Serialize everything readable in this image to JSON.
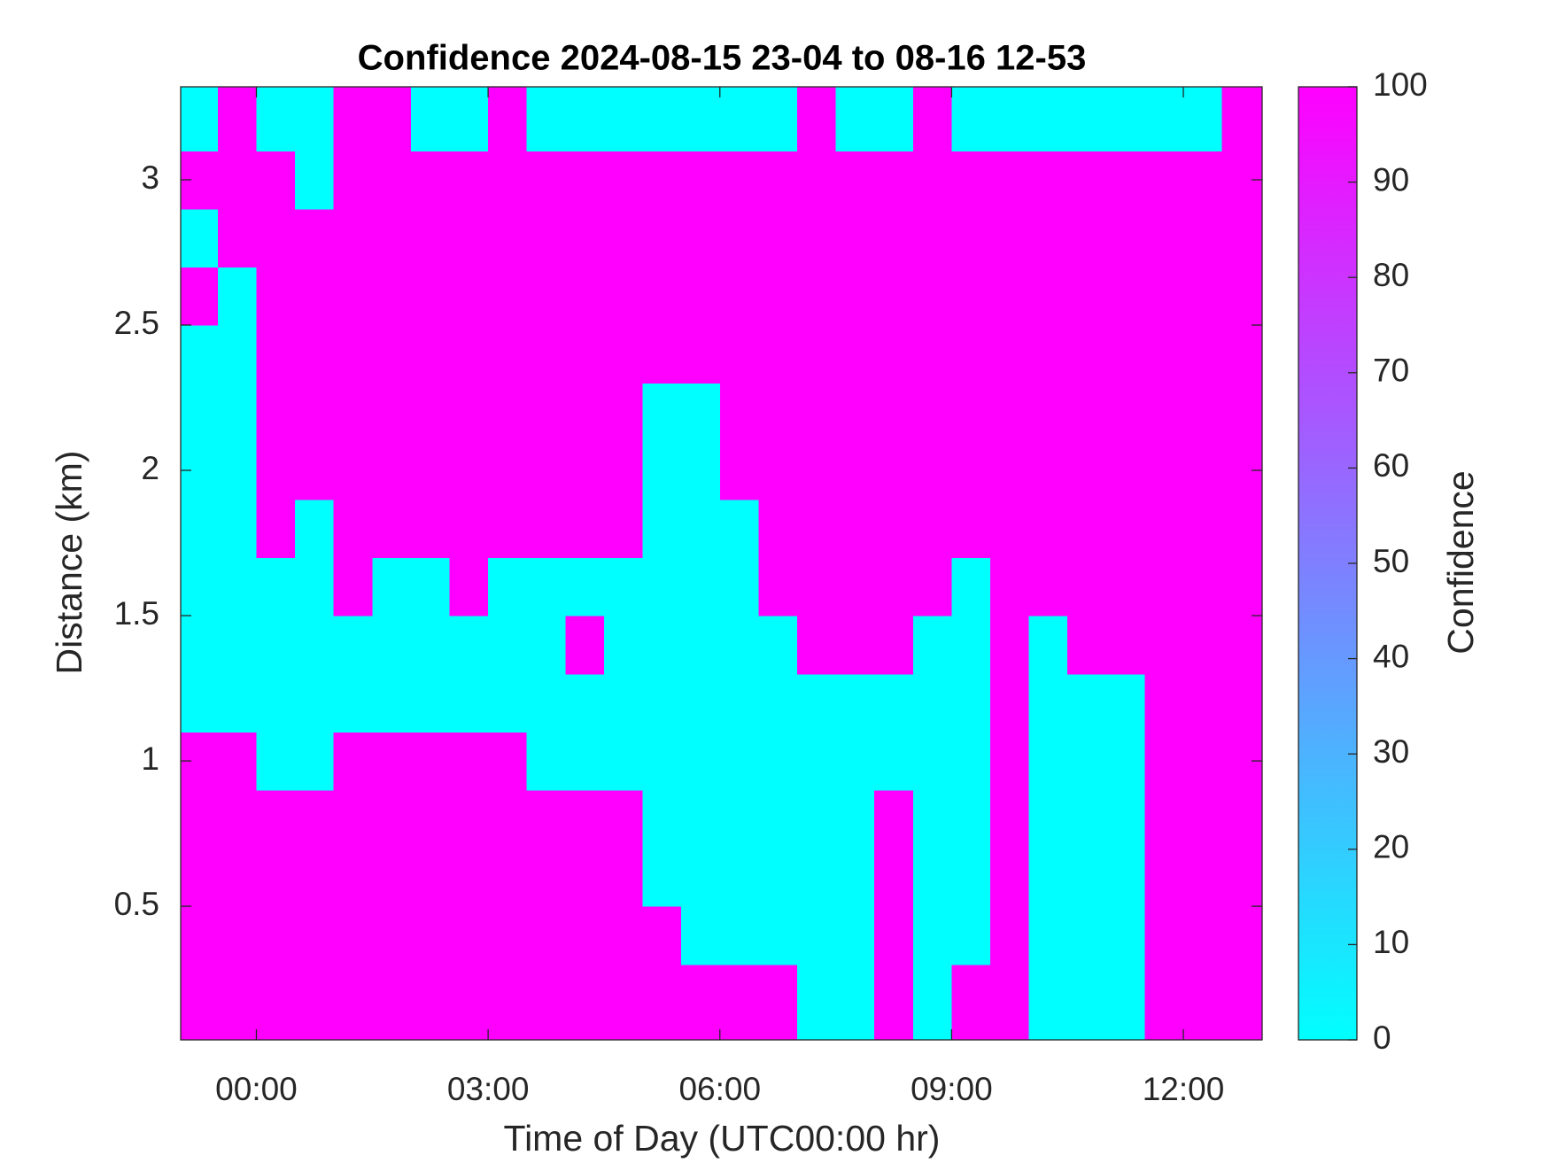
{
  "chart_data": {
    "type": "heatmap",
    "title": "Confidence 2024-08-15 23-04 to 08-16 12-53",
    "x_label": "Time of Day (UTC00:00 hr)",
    "y_label": "Distance (km)",
    "colorbar_label": "Confidence",
    "colormap": [
      "#00ffff",
      "#ff00ff"
    ],
    "clim": [
      0,
      100
    ],
    "cticks": [
      0,
      10,
      20,
      30,
      40,
      50,
      60,
      70,
      80,
      90,
      100
    ],
    "xlim": [
      -0.98,
      13.02
    ],
    "ylim": [
      0.04,
      3.32
    ],
    "xticks": [
      {
        "value": 0,
        "label": "00:00"
      },
      {
        "value": 3,
        "label": "03:00"
      },
      {
        "value": 6,
        "label": "06:00"
      },
      {
        "value": 9,
        "label": "09:00"
      },
      {
        "value": 12,
        "label": "12:00"
      }
    ],
    "yticks": [
      0.5,
      1,
      1.5,
      2,
      2.5,
      3
    ],
    "x": [
      -0.75,
      -0.25,
      0.25,
      0.75,
      1.25,
      1.75,
      2.25,
      2.75,
      3.25,
      3.75,
      4.25,
      4.75,
      5.25,
      5.75,
      6.25,
      6.75,
      7.25,
      7.75,
      8.25,
      8.75,
      9.25,
      9.75,
      10.25,
      10.75,
      11.25,
      11.75,
      12.25,
      12.75
    ],
    "y": [
      0.2,
      0.4,
      0.6,
      0.8,
      1.0,
      1.2,
      1.4,
      1.6,
      1.8,
      2.0,
      2.2,
      2.4,
      2.6,
      2.8,
      3.0,
      3.2
    ],
    "z": [
      [
        100,
        100,
        100,
        100,
        100,
        100,
        100,
        100,
        100,
        100,
        100,
        100,
        100,
        100,
        100,
        100,
        0,
        0,
        100,
        0,
        100,
        100,
        0,
        0,
        0,
        100,
        100,
        100
      ],
      [
        100,
        100,
        100,
        100,
        100,
        100,
        100,
        100,
        100,
        100,
        100,
        100,
        100,
        0,
        0,
        0,
        0,
        0,
        100,
        0,
        0,
        100,
        0,
        0,
        0,
        100,
        100,
        100
      ],
      [
        100,
        100,
        100,
        100,
        100,
        100,
        100,
        100,
        100,
        100,
        100,
        100,
        0,
        0,
        0,
        0,
        0,
        0,
        100,
        0,
        0,
        100,
        0,
        0,
        0,
        100,
        100,
        100
      ],
      [
        100,
        100,
        100,
        100,
        100,
        100,
        100,
        100,
        100,
        100,
        100,
        100,
        0,
        0,
        0,
        0,
        0,
        0,
        100,
        0,
        0,
        100,
        0,
        0,
        0,
        100,
        100,
        100
      ],
      [
        100,
        100,
        0,
        0,
        100,
        100,
        100,
        100,
        100,
        0,
        0,
        0,
        0,
        0,
        0,
        0,
        0,
        0,
        0,
        0,
        0,
        100,
        0,
        0,
        0,
        100,
        100,
        100
      ],
      [
        0,
        0,
        0,
        0,
        0,
        0,
        0,
        0,
        0,
        0,
        0,
        0,
        0,
        0,
        0,
        0,
        0,
        0,
        0,
        0,
        0,
        100,
        0,
        0,
        0,
        100,
        100,
        100
      ],
      [
        0,
        0,
        0,
        0,
        0,
        0,
        0,
        0,
        0,
        0,
        100,
        0,
        0,
        0,
        0,
        0,
        100,
        100,
        100,
        0,
        0,
        100,
        0,
        100,
        100,
        100,
        100,
        100
      ],
      [
        0,
        0,
        0,
        0,
        100,
        0,
        0,
        100,
        0,
        0,
        0,
        0,
        0,
        0,
        0,
        100,
        100,
        100,
        100,
        100,
        0,
        100,
        100,
        100,
        100,
        100,
        100,
        100
      ],
      [
        0,
        0,
        100,
        0,
        100,
        100,
        100,
        100,
        100,
        100,
        100,
        100,
        0,
        0,
        0,
        100,
        100,
        100,
        100,
        100,
        100,
        100,
        100,
        100,
        100,
        100,
        100,
        100
      ],
      [
        0,
        0,
        100,
        100,
        100,
        100,
        100,
        100,
        100,
        100,
        100,
        100,
        0,
        0,
        100,
        100,
        100,
        100,
        100,
        100,
        100,
        100,
        100,
        100,
        100,
        100,
        100,
        100
      ],
      [
        0,
        0,
        100,
        100,
        100,
        100,
        100,
        100,
        100,
        100,
        100,
        100,
        0,
        0,
        100,
        100,
        100,
        100,
        100,
        100,
        100,
        100,
        100,
        100,
        100,
        100,
        100,
        100
      ],
      [
        0,
        0,
        100,
        100,
        100,
        100,
        100,
        100,
        100,
        100,
        100,
        100,
        100,
        100,
        100,
        100,
        100,
        100,
        100,
        100,
        100,
        100,
        100,
        100,
        100,
        100,
        100,
        100
      ],
      [
        100,
        0,
        100,
        100,
        100,
        100,
        100,
        100,
        100,
        100,
        100,
        100,
        100,
        100,
        100,
        100,
        100,
        100,
        100,
        100,
        100,
        100,
        100,
        100,
        100,
        100,
        100,
        100
      ],
      [
        0,
        100,
        100,
        100,
        100,
        100,
        100,
        100,
        100,
        100,
        100,
        100,
        100,
        100,
        100,
        100,
        100,
        100,
        100,
        100,
        100,
        100,
        100,
        100,
        100,
        100,
        100,
        100
      ],
      [
        100,
        100,
        100,
        0,
        100,
        100,
        100,
        100,
        100,
        100,
        100,
        100,
        100,
        100,
        100,
        100,
        100,
        100,
        100,
        100,
        100,
        100,
        100,
        100,
        100,
        100,
        100,
        100
      ],
      [
        0,
        100,
        0,
        0,
        100,
        100,
        0,
        0,
        100,
        0,
        0,
        0,
        0,
        0,
        0,
        0,
        100,
        0,
        0,
        100,
        0,
        0,
        0,
        0,
        0,
        0,
        0,
        100
      ]
    ]
  }
}
